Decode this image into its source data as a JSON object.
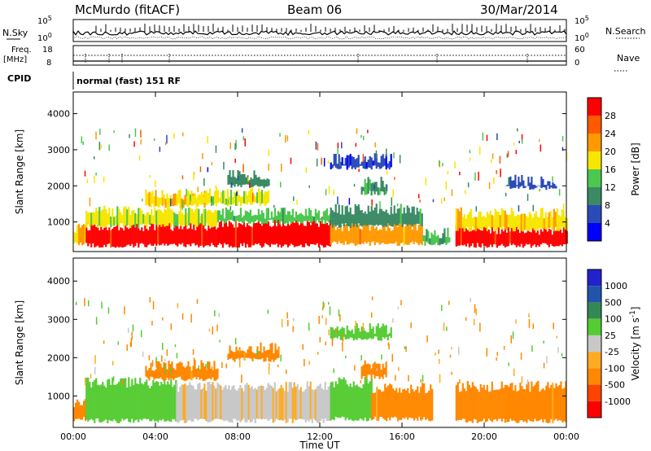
{
  "header": {
    "station": "McMurdo (fitACF)",
    "beam": "Beam 06",
    "date": "30/Mar/2014"
  },
  "status_panels": {
    "nsky_label": "N.Sky",
    "nsky_tick_top": "10^5",
    "nsky_tick_bottom": "10^0",
    "nsearch_label": "N.Search",
    "nsearch_tick_top": "10^5",
    "nsearch_tick_bottom": "10^0",
    "freq_label_line1": "Freq.",
    "freq_label_line2": "[MHz]",
    "freq_tick_top": "18",
    "freq_tick_bottom": "8",
    "nave_label": "Nave",
    "nave_tick_top": "60",
    "nave_tick_bottom": "0",
    "cpid_label": "CPID",
    "cpid_text": "normal (fast) 151 RF"
  },
  "colors": {
    "power": [
      "#0000ff",
      "#2a4ab8",
      "#3a8a64",
      "#4cc850",
      "#f7e600",
      "#ff9900",
      "#ff5a00",
      "#ff0000"
    ],
    "velocity": [
      "#ff0000",
      "#ff4400",
      "#ff8800",
      "#ffaa22",
      "#c8c8c8",
      "#55cc33",
      "#338855",
      "#2255aa",
      "#2222cc"
    ],
    "velocity_map": [
      "#ff0000",
      "#ff4400",
      "#ff8800",
      "#ffaa22",
      "#c8c8c8",
      "#c8c8c8",
      "#55cc33",
      "#338855",
      "#2255aa",
      "#2222cc"
    ]
  },
  "chart_data": [
    {
      "type": "heatmap",
      "panel": "power",
      "xlabel": "",
      "ylabel": "Slant Range [km]",
      "ylim": [
        180,
        4600
      ],
      "yticks": [
        "1000",
        "2000",
        "3000",
        "4000"
      ],
      "xlim": [
        0,
        24
      ],
      "colorbar_label": "Power [dB]",
      "colorbar_ticks": [
        "4",
        "8",
        "12",
        "16",
        "20",
        "24",
        "28"
      ],
      "bands": [
        {
          "t0": 0.0,
          "t1": 0.6,
          "r0": 400,
          "r1": 850,
          "value": 20
        },
        {
          "t0": 0.6,
          "t1": 7.0,
          "r0": 350,
          "r1": 900,
          "value": 30
        },
        {
          "t0": 0.6,
          "t1": 7.0,
          "r0": 900,
          "r1": 1300,
          "value": 17
        },
        {
          "t0": 7.0,
          "t1": 12.5,
          "r0": 350,
          "r1": 1000,
          "value": 30
        },
        {
          "t0": 7.0,
          "t1": 12.5,
          "r0": 1000,
          "r1": 1250,
          "value": 14
        },
        {
          "t0": 12.5,
          "t1": 17.0,
          "r0": 400,
          "r1": 900,
          "value": 22
        },
        {
          "t0": 12.5,
          "t1": 17.0,
          "r0": 900,
          "r1": 1350,
          "value": 10
        },
        {
          "t0": 17.0,
          "t1": 18.3,
          "r0": 400,
          "r1": 700,
          "value": 12
        },
        {
          "t0": 18.6,
          "t1": 24.0,
          "r0": 350,
          "r1": 800,
          "value": 30
        },
        {
          "t0": 18.6,
          "t1": 24.0,
          "r0": 800,
          "r1": 1250,
          "value": 19
        },
        {
          "t0": 3.5,
          "t1": 6.5,
          "r0": 1450,
          "r1": 1750,
          "value": 19
        },
        {
          "t0": 5.5,
          "t1": 9.5,
          "r0": 1500,
          "r1": 1800,
          "value": 17
        },
        {
          "t0": 7.5,
          "t1": 9.5,
          "r0": 2000,
          "r1": 2300,
          "value": 10
        },
        {
          "t0": 12.5,
          "t1": 15.5,
          "r0": 2500,
          "r1": 2750,
          "value": 5
        },
        {
          "t0": 14.0,
          "t1": 15.2,
          "r0": 1800,
          "r1": 2100,
          "value": 11
        },
        {
          "t0": 21.0,
          "t1": 23.5,
          "r0": 1950,
          "r1": 2150,
          "value": 6
        }
      ]
    },
    {
      "type": "heatmap",
      "panel": "velocity",
      "xlabel": "Time UT",
      "ylabel": "Slant Range [km]",
      "ylim": [
        180,
        4600
      ],
      "yticks": [
        "1000",
        "2000",
        "3000",
        "4000"
      ],
      "xlim": [
        0,
        24
      ],
      "xticks": [
        "00:00",
        "04:00",
        "08:00",
        "12:00",
        "16:00",
        "20:00",
        "00:00"
      ],
      "colorbar_label": "Velocity [m s^-1]",
      "colorbar_ticks": [
        "1000",
        "500",
        "100",
        "25",
        "-25",
        "-100",
        "-500",
        "-1000"
      ],
      "bands": [
        {
          "t0": 0.0,
          "t1": 0.6,
          "r0": 400,
          "r1": 850,
          "value": -300
        },
        {
          "t0": 0.6,
          "t1": 5.0,
          "r0": 350,
          "r1": 1350,
          "value": 200
        },
        {
          "t0": 5.0,
          "t1": 8.5,
          "r0": 350,
          "r1": 1250,
          "value": 0
        },
        {
          "t0": 8.5,
          "t1": 12.5,
          "r0": 350,
          "r1": 1250,
          "value": 0
        },
        {
          "t0": 12.5,
          "t1": 14.5,
          "r0": 400,
          "r1": 1350,
          "value": 300
        },
        {
          "t0": 14.5,
          "t1": 17.5,
          "r0": 400,
          "r1": 1200,
          "value": -150
        },
        {
          "t0": 18.6,
          "t1": 21.0,
          "r0": 350,
          "r1": 1250,
          "value": -300
        },
        {
          "t0": 21.0,
          "t1": 24.0,
          "r0": 350,
          "r1": 1250,
          "value": -150
        },
        {
          "t0": 3.5,
          "t1": 7.0,
          "r0": 1450,
          "r1": 1800,
          "value": -150
        },
        {
          "t0": 14.0,
          "t1": 15.2,
          "r0": 1500,
          "r1": 1800,
          "value": -300
        },
        {
          "t0": 12.5,
          "t1": 15.5,
          "r0": 2500,
          "r1": 2750,
          "value": 200
        },
        {
          "t0": 7.5,
          "t1": 10.0,
          "r0": 1950,
          "r1": 2250,
          "value": -150
        }
      ]
    }
  ]
}
